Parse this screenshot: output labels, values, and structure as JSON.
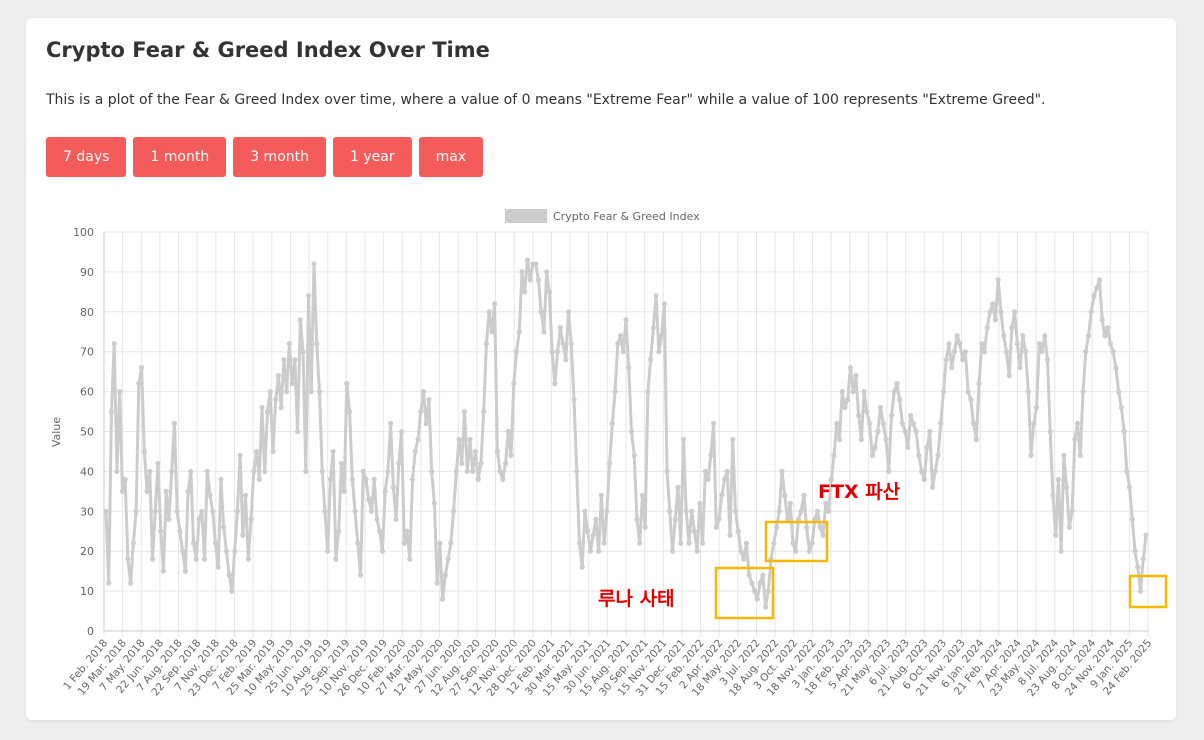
{
  "page": {
    "title": "Crypto Fear & Greed Index Over Time",
    "description": "This is a plot of the Fear & Greed Index over time, where a value of 0 means \"Extreme Fear\" while a value of 100 represents \"Extreme Greed\"."
  },
  "range_buttons": [
    "7 days",
    "1 month",
    "3 month",
    "1 year",
    "max"
  ],
  "annotations": {
    "luna": "루나 사태",
    "ftx": "FTX 파산",
    "box_color": "#f5b800",
    "text_color": "#e00000"
  },
  "colors": {
    "button": "#f45b5b",
    "series": "#cccccc",
    "grid": "#e6e6e6"
  },
  "chart_data": {
    "type": "line",
    "legend": "Crypto Fear & Greed Index",
    "legend_position": "top-center",
    "ylabel": "Value",
    "xlabel": "",
    "ylim": [
      0,
      100
    ],
    "yticks": [
      0,
      10,
      20,
      30,
      40,
      50,
      60,
      70,
      80,
      90,
      100
    ],
    "grid": true,
    "xtick_labels": [
      "1 Feb. 2018",
      "19 Mar. 2018",
      "7 May. 2018",
      "22 Jun. 2018",
      "7 Aug. 2018",
      "22 Sep. 2018",
      "7 Nov. 2018",
      "23 Dec. 2018",
      "7 Feb. 2019",
      "25 Mar. 2019",
      "10 May. 2019",
      "25 Jun. 2019",
      "10 Aug. 2019",
      "25 Sep. 2019",
      "10 Nov. 2019",
      "26 Dec. 2019",
      "10 Feb. 2020",
      "27 Mar. 2020",
      "12 May. 2020",
      "27 Jun. 2020",
      "12 Aug. 2020",
      "27 Sep. 2020",
      "12 Nov. 2020",
      "28 Dec. 2020",
      "12 Feb. 2021",
      "30 Mar. 2021",
      "15 May. 2021",
      "30 Jun. 2021",
      "15 Aug. 2021",
      "30 Sep. 2021",
      "15 Nov. 2021",
      "31 Dec. 2021",
      "15 Feb. 2022",
      "2 Apr. 2022",
      "18 May. 2022",
      "3 Jul. 2022",
      "18 Aug. 2022",
      "3 Oct. 2022",
      "18 Nov. 2022",
      "3 Jan. 2023",
      "18 Feb. 2023",
      "5 Apr. 2023",
      "21 May. 2023",
      "6 Jul. 2023",
      "21 Aug. 2023",
      "6 Oct. 2023",
      "21 Nov. 2023",
      "6 Jan. 2024",
      "21 Feb. 2024",
      "7 Apr. 2024",
      "23 May. 2024",
      "8 Jul. 2024",
      "23 Aug. 2024",
      "8 Oct. 2024",
      "24 Nov. 2024",
      "9 Jan. 2025",
      "24 Feb. 2025"
    ],
    "series": [
      {
        "name": "Crypto Fear & Greed Index",
        "values": [
          30,
          12,
          55,
          72,
          40,
          60,
          35,
          38,
          18,
          12,
          22,
          30,
          62,
          66,
          45,
          35,
          40,
          18,
          30,
          42,
          25,
          15,
          35,
          28,
          40,
          52,
          30,
          25,
          20,
          15,
          35,
          40,
          22,
          18,
          28,
          30,
          18,
          40,
          34,
          30,
          22,
          16,
          38,
          26,
          20,
          14,
          10,
          20,
          30,
          44,
          24,
          34,
          18,
          28,
          40,
          45,
          38,
          56,
          40,
          55,
          60,
          45,
          58,
          64,
          56,
          68,
          60,
          72,
          62,
          68,
          50,
          78,
          70,
          40,
          84,
          60,
          92,
          72,
          60,
          40,
          30,
          20,
          38,
          45,
          18,
          25,
          42,
          35,
          62,
          55,
          38,
          30,
          22,
          14,
          40,
          38,
          33,
          30,
          38,
          28,
          25,
          20,
          35,
          40,
          52,
          36,
          28,
          42,
          50,
          22,
          25,
          18,
          38,
          45,
          48,
          55,
          60,
          52,
          58,
          40,
          32,
          12,
          22,
          8,
          14,
          18,
          22,
          30,
          40,
          48,
          42,
          55,
          40,
          48,
          40,
          45,
          38,
          42,
          55,
          72,
          80,
          75,
          82,
          45,
          40,
          38,
          42,
          50,
          44,
          62,
          70,
          75,
          90,
          85,
          93,
          88,
          92,
          92,
          88,
          80,
          75,
          90,
          85,
          70,
          62,
          70,
          76,
          72,
          68,
          80,
          72,
          58,
          40,
          22,
          16,
          30,
          25,
          20,
          24,
          28,
          20,
          34,
          22,
          30,
          42,
          52,
          60,
          72,
          74,
          70,
          78,
          66,
          50,
          44,
          28,
          22,
          34,
          26,
          60,
          68,
          76,
          84,
          70,
          74,
          82,
          40,
          30,
          20,
          28,
          36,
          22,
          48,
          30,
          22,
          30,
          25,
          20,
          32,
          22,
          40,
          38,
          44,
          52,
          26,
          28,
          34,
          38,
          40,
          24,
          48,
          30,
          25,
          20,
          18,
          22,
          14,
          12,
          10,
          8,
          12,
          14,
          6,
          10,
          18,
          22,
          26,
          30,
          40,
          34,
          28,
          32,
          22,
          20,
          28,
          30,
          34,
          26,
          20,
          22,
          28,
          30,
          26,
          24,
          32,
          30,
          38,
          44,
          52,
          48,
          60,
          56,
          58,
          66,
          60,
          64,
          54,
          48,
          60,
          55,
          52,
          44,
          46,
          50,
          56,
          52,
          48,
          40,
          54,
          60,
          62,
          58,
          52,
          50,
          46,
          54,
          52,
          50,
          44,
          40,
          38,
          46,
          50,
          36,
          40,
          44,
          52,
          60,
          68,
          72,
          66,
          70,
          74,
          72,
          68,
          70,
          60,
          58,
          52,
          48,
          62,
          72,
          70,
          76,
          80,
          82,
          78,
          88,
          80,
          74,
          70,
          64,
          76,
          80,
          72,
          66,
          74,
          70,
          60,
          44,
          52,
          56,
          72,
          70,
          74,
          68,
          50,
          34,
          24,
          38,
          20,
          44,
          36,
          26,
          30,
          48,
          52,
          44,
          60,
          70,
          74,
          80,
          84,
          86,
          88,
          78,
          74,
          76,
          72,
          70,
          66,
          60,
          56,
          50,
          40,
          36,
          28,
          20,
          16,
          10,
          18,
          24
        ]
      }
    ]
  }
}
